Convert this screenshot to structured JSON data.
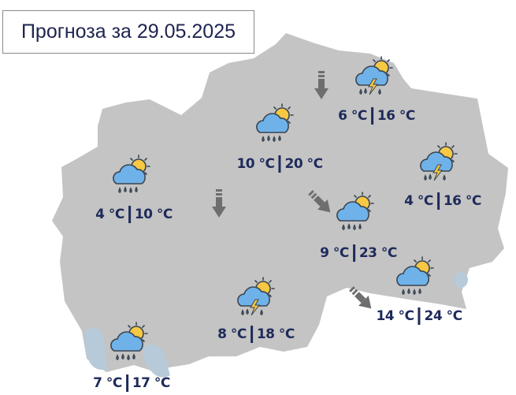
{
  "title": "Прогноза за 29.05.2025",
  "colors": {
    "land": "#c4c4c4",
    "lake": "#b7cad9",
    "text": "#1e2a5a",
    "cloud": "#6fb2ea",
    "sun": "#f6c843",
    "arrow": "#6e6e6e"
  },
  "locations": [
    {
      "icon": "thunderstorm-rain-sun-icon",
      "min": "6 °C",
      "max": "16 °C"
    },
    {
      "icon": "rain-sun-icon",
      "min": "10 °C",
      "max": "20 °C"
    },
    {
      "icon": "rain-sun-icon",
      "min": "4 °C",
      "max": "10 °C"
    },
    {
      "icon": "thunderstorm-rain-sun-icon",
      "min": "4 °C",
      "max": "16 °C"
    },
    {
      "icon": "rain-sun-icon",
      "min": "9 °C",
      "max": "23 °C"
    },
    {
      "icon": "rain-sun-icon",
      "min": "14 °C",
      "max": "24 °C"
    },
    {
      "icon": "thunderstorm-rain-sun-icon",
      "min": "8 °C",
      "max": "18 °C"
    },
    {
      "icon": "rain-sun-icon",
      "min": "7 °C",
      "max": "17 °C"
    }
  ],
  "wind_arrows": [
    {
      "direction": "south"
    },
    {
      "direction": "south"
    },
    {
      "direction": "southeast"
    },
    {
      "direction": "southeast"
    }
  ]
}
